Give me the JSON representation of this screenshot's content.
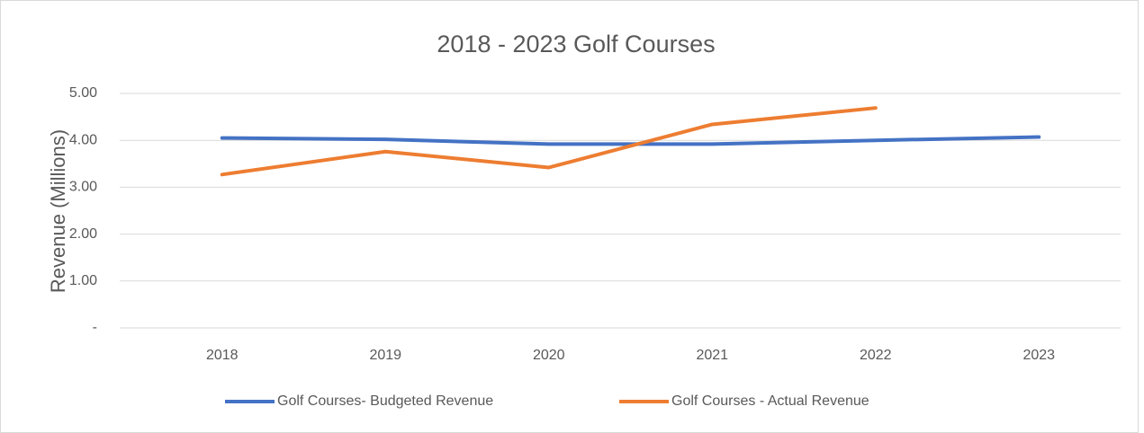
{
  "chart_data": {
    "type": "line",
    "title": "2018 - 2023 Golf Courses",
    "y_label": "Revenue (Millions)",
    "categories": [
      "2018",
      "2019",
      "2020",
      "2021",
      "2022",
      "2023"
    ],
    "series": [
      {
        "name": "Golf Courses- Budgeted Revenue",
        "color": "#4472c4",
        "values": [
          4.05,
          4.02,
          3.92,
          3.92,
          4.0,
          4.07
        ]
      },
      {
        "name": "Golf Courses - Actual Revenue",
        "color": "#ed7d31",
        "values": [
          3.27,
          3.76,
          3.42,
          4.34,
          4.69,
          null
        ]
      }
    ],
    "ylim": [
      0,
      5
    ],
    "yticks": [
      {
        "value": 0,
        "label": "-"
      },
      {
        "value": 1,
        "label": "1.00"
      },
      {
        "value": 2,
        "label": "2.00"
      },
      {
        "value": 3,
        "label": "3.00"
      },
      {
        "value": 4,
        "label": "4.00"
      },
      {
        "value": 5,
        "label": "5.00"
      }
    ],
    "grid": true,
    "legend": "bottom"
  }
}
